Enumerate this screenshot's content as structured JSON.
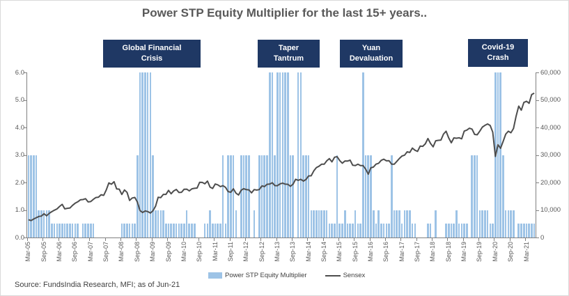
{
  "title": "Power STP Equity Multiplier for the last 15+ years..",
  "source_note": "Source: FundsIndia Research, MFI; as of Jun-21",
  "colors": {
    "bar": "#9DC3E6",
    "line": "#4D4D4D",
    "annotation_bg": "#1F3864",
    "title_text": "#595959",
    "axis": "#808080"
  },
  "annotations": [
    {
      "line1": "Global Financial",
      "line2": "Crisis"
    },
    {
      "line1": "Taper",
      "line2": "Tantrum"
    },
    {
      "line1": "Yuan",
      "line2": "Devaluation"
    },
    {
      "line1": "Covid-19",
      "line2": "Crash"
    }
  ],
  "legend": {
    "items": [
      {
        "label": "Power STP Equity Multiplier",
        "swatch": "bar"
      },
      {
        "label": "Sensex",
        "swatch": "line"
      }
    ]
  },
  "chart_data": {
    "type": "combo",
    "title": "Power STP Equity Multiplier for the last 15+ years..",
    "x_start": "Mar-05",
    "x_end": "Jun-21",
    "frequency": "monthly",
    "x_tick_labels": [
      "Mar-05",
      "Sep-05",
      "Mar-06",
      "Sep-06",
      "Mar-07",
      "Sep-07",
      "Mar-08",
      "Sep-08",
      "Mar-09",
      "Sep-09",
      "Mar-10",
      "Sep-10",
      "Mar-11",
      "Sep-11",
      "Mar-12",
      "Sep-12",
      "Mar-13",
      "Sep-13",
      "Mar-14",
      "Sep-14",
      "Mar-15",
      "Sep-15",
      "Mar-16",
      "Sep-16",
      "Mar-17",
      "Sep-17",
      "Mar-18",
      "Sep-18",
      "Mar-19",
      "Sep-19",
      "Mar-20",
      "Sep-20",
      "Mar-21"
    ],
    "left_axis": {
      "min": 0,
      "max": 6,
      "tick_labels": [
        "0.0",
        "1.0",
        "2.0",
        "3.0",
        "4.0",
        "5.0",
        "6.0"
      ]
    },
    "right_axis": {
      "min": 0,
      "max": 60000,
      "tick_labels": [
        "0",
        "10,000",
        "20,000",
        "30,000",
        "40,000",
        "50,000",
        "60,000"
      ]
    },
    "series": [
      {
        "name": "Power STP Equity Multiplier",
        "type": "bar",
        "axis": "left",
        "color": "#9DC3E6",
        "values": [
          3,
          3,
          3,
          3,
          1,
          1,
          1,
          1,
          1,
          0.5,
          0.5,
          0.5,
          0.5,
          0.5,
          0.5,
          0.5,
          0.5,
          0.5,
          0.5,
          0.5,
          0,
          0.5,
          0.5,
          0.5,
          0.5,
          0.5,
          0,
          0,
          0,
          0,
          0,
          0,
          0,
          0,
          0,
          0,
          0.5,
          0.5,
          0.5,
          0.5,
          0.5,
          0.5,
          3,
          6,
          6,
          6,
          6,
          6,
          3,
          1,
          1,
          1,
          1,
          0.5,
          0.5,
          0.5,
          0.5,
          0.5,
          0.5,
          0.5,
          0.5,
          1,
          0.5,
          0.5,
          0.5,
          0,
          0,
          0,
          0.5,
          0.5,
          1,
          0.5,
          0.5,
          0.5,
          0.5,
          3,
          0.5,
          3,
          3,
          3,
          1,
          0,
          3,
          3,
          3,
          3,
          0,
          1,
          0,
          3,
          3,
          3,
          3,
          6,
          6,
          3,
          6,
          6,
          6,
          6,
          6,
          3,
          3,
          0,
          6,
          6,
          3,
          3,
          3,
          1,
          1,
          1,
          1,
          1,
          1,
          1,
          0.5,
          0.5,
          0.5,
          3,
          0.5,
          0.5,
          1,
          0.5,
          0.5,
          0.5,
          1,
          0.5,
          0.5,
          6,
          3,
          3,
          3,
          1,
          0.5,
          1,
          0.5,
          0.5,
          0.5,
          0.5,
          3,
          1,
          1,
          1,
          0.5,
          1,
          1,
          1,
          0.5,
          0.5,
          0,
          0,
          0,
          0,
          0.5,
          0.5,
          0,
          1,
          0,
          0,
          0,
          0.5,
          0.5,
          0.5,
          0.5,
          1,
          0.5,
          0.5,
          0.5,
          0.5,
          0,
          3,
          3,
          3,
          1,
          1,
          1,
          1,
          0.5,
          0.5,
          6,
          6,
          6,
          3,
          1,
          1,
          1,
          1,
          0,
          0.5,
          0.5,
          0.5,
          0.5,
          0.5,
          0.5,
          0.5
        ]
      },
      {
        "name": "Sensex",
        "type": "line",
        "axis": "right",
        "color": "#4D4D4D",
        "values": [
          6493,
          6154,
          6715,
          7194,
          7635,
          7805,
          8634,
          7892,
          8789,
          9398,
          9920,
          10370,
          11280,
          12043,
          10399,
          10609,
          10744,
          11699,
          12454,
          12962,
          13696,
          13787,
          14091,
          12938,
          13072,
          13872,
          14544,
          14651,
          15551,
          15319,
          17291,
          19838,
          19363,
          20287,
          17649,
          17579,
          15644,
          17287,
          16416,
          13462,
          14356,
          14565,
          12860,
          9788,
          9093,
          9647,
          9424,
          8892,
          9709,
          11403,
          14625,
          14494,
          15670,
          15667,
          17127,
          15896,
          16926,
          17465,
          16358,
          16430,
          17528,
          17559,
          16945,
          17701,
          17868,
          17971,
          20069,
          20032,
          19521,
          20509,
          18328,
          17823,
          19445,
          19136,
          18503,
          18846,
          18197,
          16677,
          16454,
          17705,
          16123,
          15455,
          17194,
          17753,
          17404,
          17319,
          16219,
          17430,
          17236,
          17430,
          18763,
          18505,
          19340,
          19427,
          19895,
          18862,
          18836,
          19504,
          19760,
          19396,
          19346,
          18620,
          19380,
          21165,
          20792,
          21171,
          20514,
          21120,
          22386,
          22418,
          24217,
          25414,
          25895,
          26638,
          26631,
          27866,
          28694,
          27499,
          29183,
          29362,
          27957,
          27011,
          27828,
          27781,
          28115,
          26283,
          26155,
          26657,
          26146,
          26118,
          24871,
          23002,
          25342,
          25607,
          26668,
          26999,
          28052,
          28452,
          27866,
          27930,
          26653,
          26626,
          27656,
          28743,
          29621,
          29918,
          31146,
          30922,
          32515,
          31730,
          31284,
          33213,
          33149,
          34057,
          35965,
          34184,
          32969,
          35160,
          35322,
          35423,
          37607,
          38645,
          36227,
          34442,
          36194,
          36068,
          36257,
          35867,
          38673,
          39032,
          39714,
          39395,
          37481,
          37333,
          38667,
          40129,
          40794,
          41254,
          40723,
          38297,
          29468,
          33718,
          32424,
          34916,
          37607,
          38628,
          38068,
          39614,
          44150,
          47751,
          46286,
          49100,
          49509,
          48782,
          51937,
          52483
        ]
      }
    ]
  }
}
